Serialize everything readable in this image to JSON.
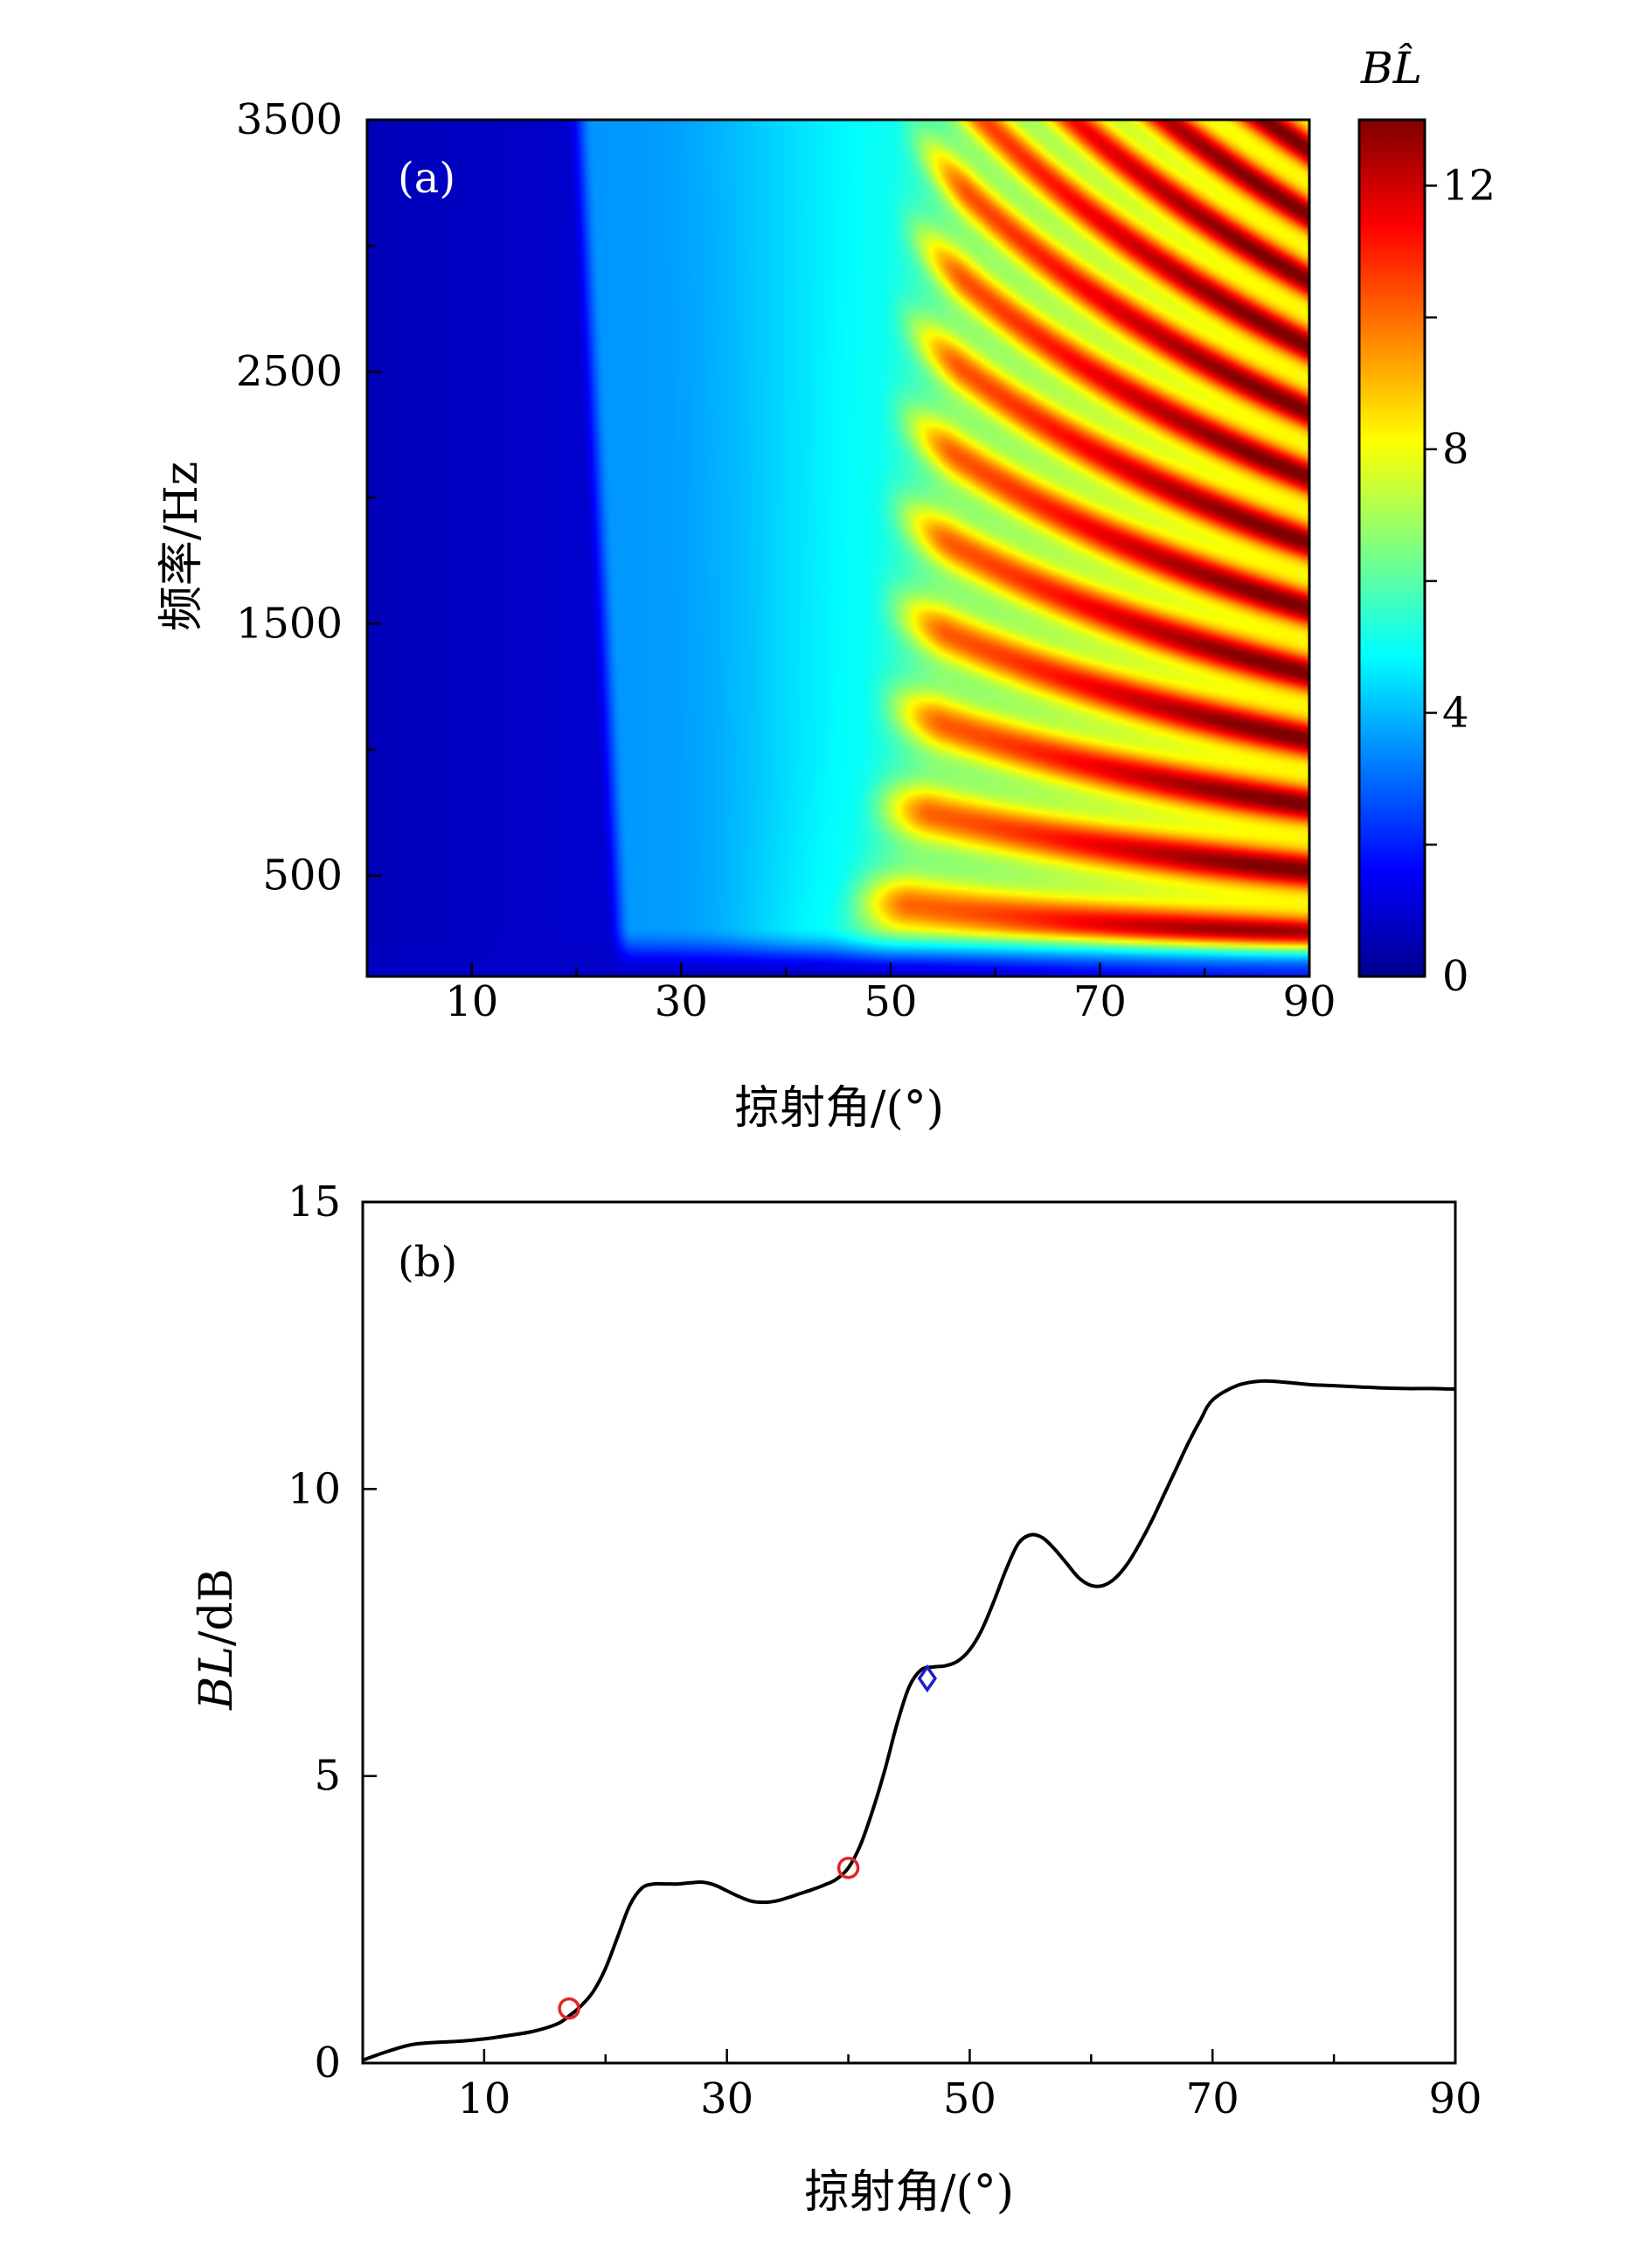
{
  "chart_data": [
    {
      "type": "heatmap",
      "panel_label": "(a)",
      "xlabel": "掠射角/(°)",
      "ylabel": "频率/Hz",
      "xlim": [
        0,
        90
      ],
      "ylim": [
        100,
        3500
      ],
      "xticks": [
        10,
        30,
        50,
        70,
        90
      ],
      "yticks": [
        500,
        1500,
        2500,
        3500
      ],
      "colorbar": {
        "title": "BL̂",
        "range": [
          0,
          13
        ],
        "ticks": [
          0,
          4,
          8,
          12
        ]
      },
      "description_values": {
        "low_region_angle_max": 20,
        "transition_angle": [
          20,
          50
        ],
        "fringe_region_angle_min": 50,
        "max_value": 13
      }
    },
    {
      "type": "line",
      "panel_label": "(b)",
      "xlabel": "掠射角/(°)",
      "ylabel": "BL/dB",
      "ylabel_italic_part": "BL",
      "ylabel_unit_part": "/dB",
      "xlim": [
        0,
        90
      ],
      "ylim": [
        0,
        15
      ],
      "xticks": [
        10,
        30,
        50,
        70,
        90
      ],
      "yticks": [
        0,
        5,
        10,
        15
      ],
      "series": [
        {
          "name": "BL",
          "color": "#000000",
          "x": [
            0,
            2,
            4,
            6,
            8,
            10,
            12,
            14,
            16,
            17,
            18,
            19,
            20,
            21,
            22,
            23,
            24,
            25,
            26,
            27,
            28,
            29,
            30,
            31,
            32,
            33,
            34,
            35,
            36,
            37,
            38,
            39,
            40,
            41,
            42,
            43,
            44,
            45,
            46,
            47,
            48,
            49,
            50,
            51,
            52,
            53,
            54,
            55,
            56,
            57,
            58,
            59,
            60,
            61,
            62,
            63,
            64,
            65,
            66,
            67,
            68,
            69,
            70,
            72,
            74,
            76,
            78,
            80,
            82,
            84,
            86,
            88,
            90
          ],
          "y": [
            0.05,
            0.2,
            0.32,
            0.36,
            0.38,
            0.42,
            0.48,
            0.55,
            0.68,
            0.82,
            1.0,
            1.25,
            1.65,
            2.2,
            2.75,
            3.05,
            3.12,
            3.12,
            3.12,
            3.14,
            3.15,
            3.1,
            3.0,
            2.9,
            2.82,
            2.8,
            2.82,
            2.88,
            2.95,
            3.02,
            3.1,
            3.2,
            3.4,
            3.8,
            4.4,
            5.1,
            5.9,
            6.55,
            6.85,
            6.9,
            6.92,
            7.0,
            7.2,
            7.55,
            8.05,
            8.6,
            9.05,
            9.2,
            9.15,
            8.95,
            8.7,
            8.45,
            8.32,
            8.32,
            8.45,
            8.7,
            9.05,
            9.45,
            9.9,
            10.35,
            10.8,
            11.2,
            11.55,
            11.8,
            11.88,
            11.86,
            11.82,
            11.8,
            11.78,
            11.76,
            11.75,
            11.75,
            11.74
          ]
        }
      ],
      "markers": [
        {
          "shape": "circle",
          "color": "#e32424",
          "x": 17,
          "y": 0.95
        },
        {
          "shape": "circle",
          "color": "#e32424",
          "x": 40,
          "y": 3.4
        },
        {
          "shape": "diamond",
          "color": "#1c1ccf",
          "x": 46.5,
          "y": 6.7
        }
      ]
    }
  ]
}
